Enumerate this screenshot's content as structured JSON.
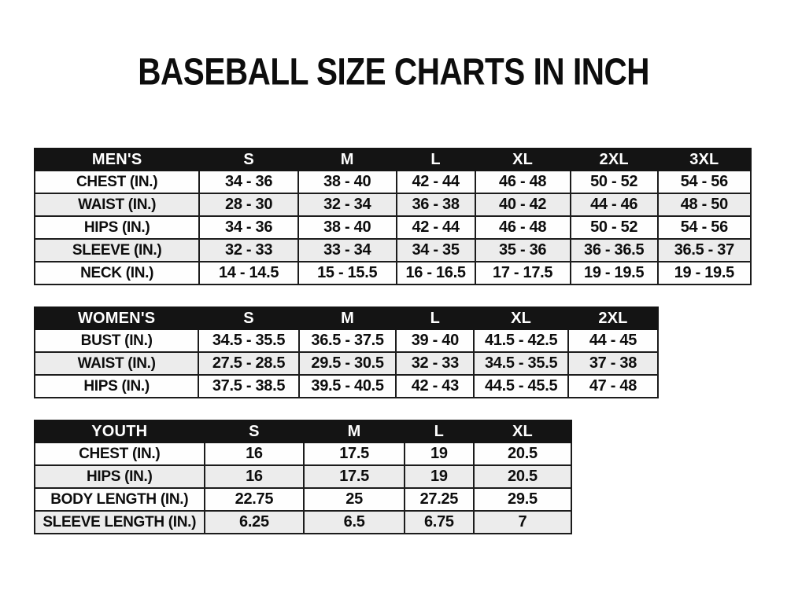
{
  "page": {
    "title": "BASEBALL SIZE CHARTS IN INCH"
  },
  "colors": {
    "page_bg": "#ffffff",
    "header_bg": "#141414",
    "header_text": "#ffffff",
    "row_bg": "#fefefe",
    "stripe_bg": "#ececec",
    "border": "#1c1c1c",
    "text": "#0d0d0d"
  },
  "tables": [
    {
      "id": "mens",
      "header": [
        "MEN'S",
        "S",
        "M",
        "L",
        "XL",
        "2XL",
        "3XL"
      ],
      "rows": [
        [
          "CHEST (IN.)",
          "34 - 36",
          "38 - 40",
          "42 - 44",
          "46 - 48",
          "50 - 52",
          "54 - 56"
        ],
        [
          "WAIST (IN.)",
          "28 - 30",
          "32 - 34",
          "36 - 38",
          "40 - 42",
          "44 - 46",
          "48 - 50"
        ],
        [
          "HIPS (IN.)",
          "34 - 36",
          "38 - 40",
          "42 - 44",
          "46 - 48",
          "50 - 52",
          "54 - 56"
        ],
        [
          "SLEEVE (IN.)",
          "32 - 33",
          "33 - 34",
          "34 - 35",
          "35 - 36",
          "36 - 36.5",
          "36.5 - 37"
        ],
        [
          "NECK (IN.)",
          "14 - 14.5",
          "15 - 15.5",
          "16 - 16.5",
          "17 - 17.5",
          "19 - 19.5",
          "19 - 19.5"
        ]
      ]
    },
    {
      "id": "womens",
      "header": [
        "WOMEN'S",
        "S",
        "M",
        "L",
        "XL",
        "2XL"
      ],
      "rows": [
        [
          "BUST (IN.)",
          "34.5 - 35.5",
          "36.5 - 37.5",
          "39 - 40",
          "41.5 - 42.5",
          "44 - 45"
        ],
        [
          "WAIST (IN.)",
          "27.5 - 28.5",
          "29.5 - 30.5",
          "32 - 33",
          "34.5 - 35.5",
          "37 - 38"
        ],
        [
          "HIPS (IN.)",
          "37.5 - 38.5",
          "39.5 - 40.5",
          "42 - 43",
          "44.5 - 45.5",
          "47 - 48"
        ]
      ]
    },
    {
      "id": "youth",
      "header": [
        "YOUTH",
        "S",
        "M",
        "L",
        "XL"
      ],
      "rows": [
        [
          "CHEST (IN.)",
          "16",
          "17.5",
          "19",
          "20.5"
        ],
        [
          "HIPS (IN.)",
          "16",
          "17.5",
          "19",
          "20.5"
        ],
        [
          "BODY LENGTH (IN.)",
          "22.75",
          "25",
          "27.25",
          "29.5"
        ],
        [
          "SLEEVE LENGTH (IN.)",
          "6.25",
          "6.5",
          "6.75",
          "7"
        ]
      ]
    }
  ]
}
